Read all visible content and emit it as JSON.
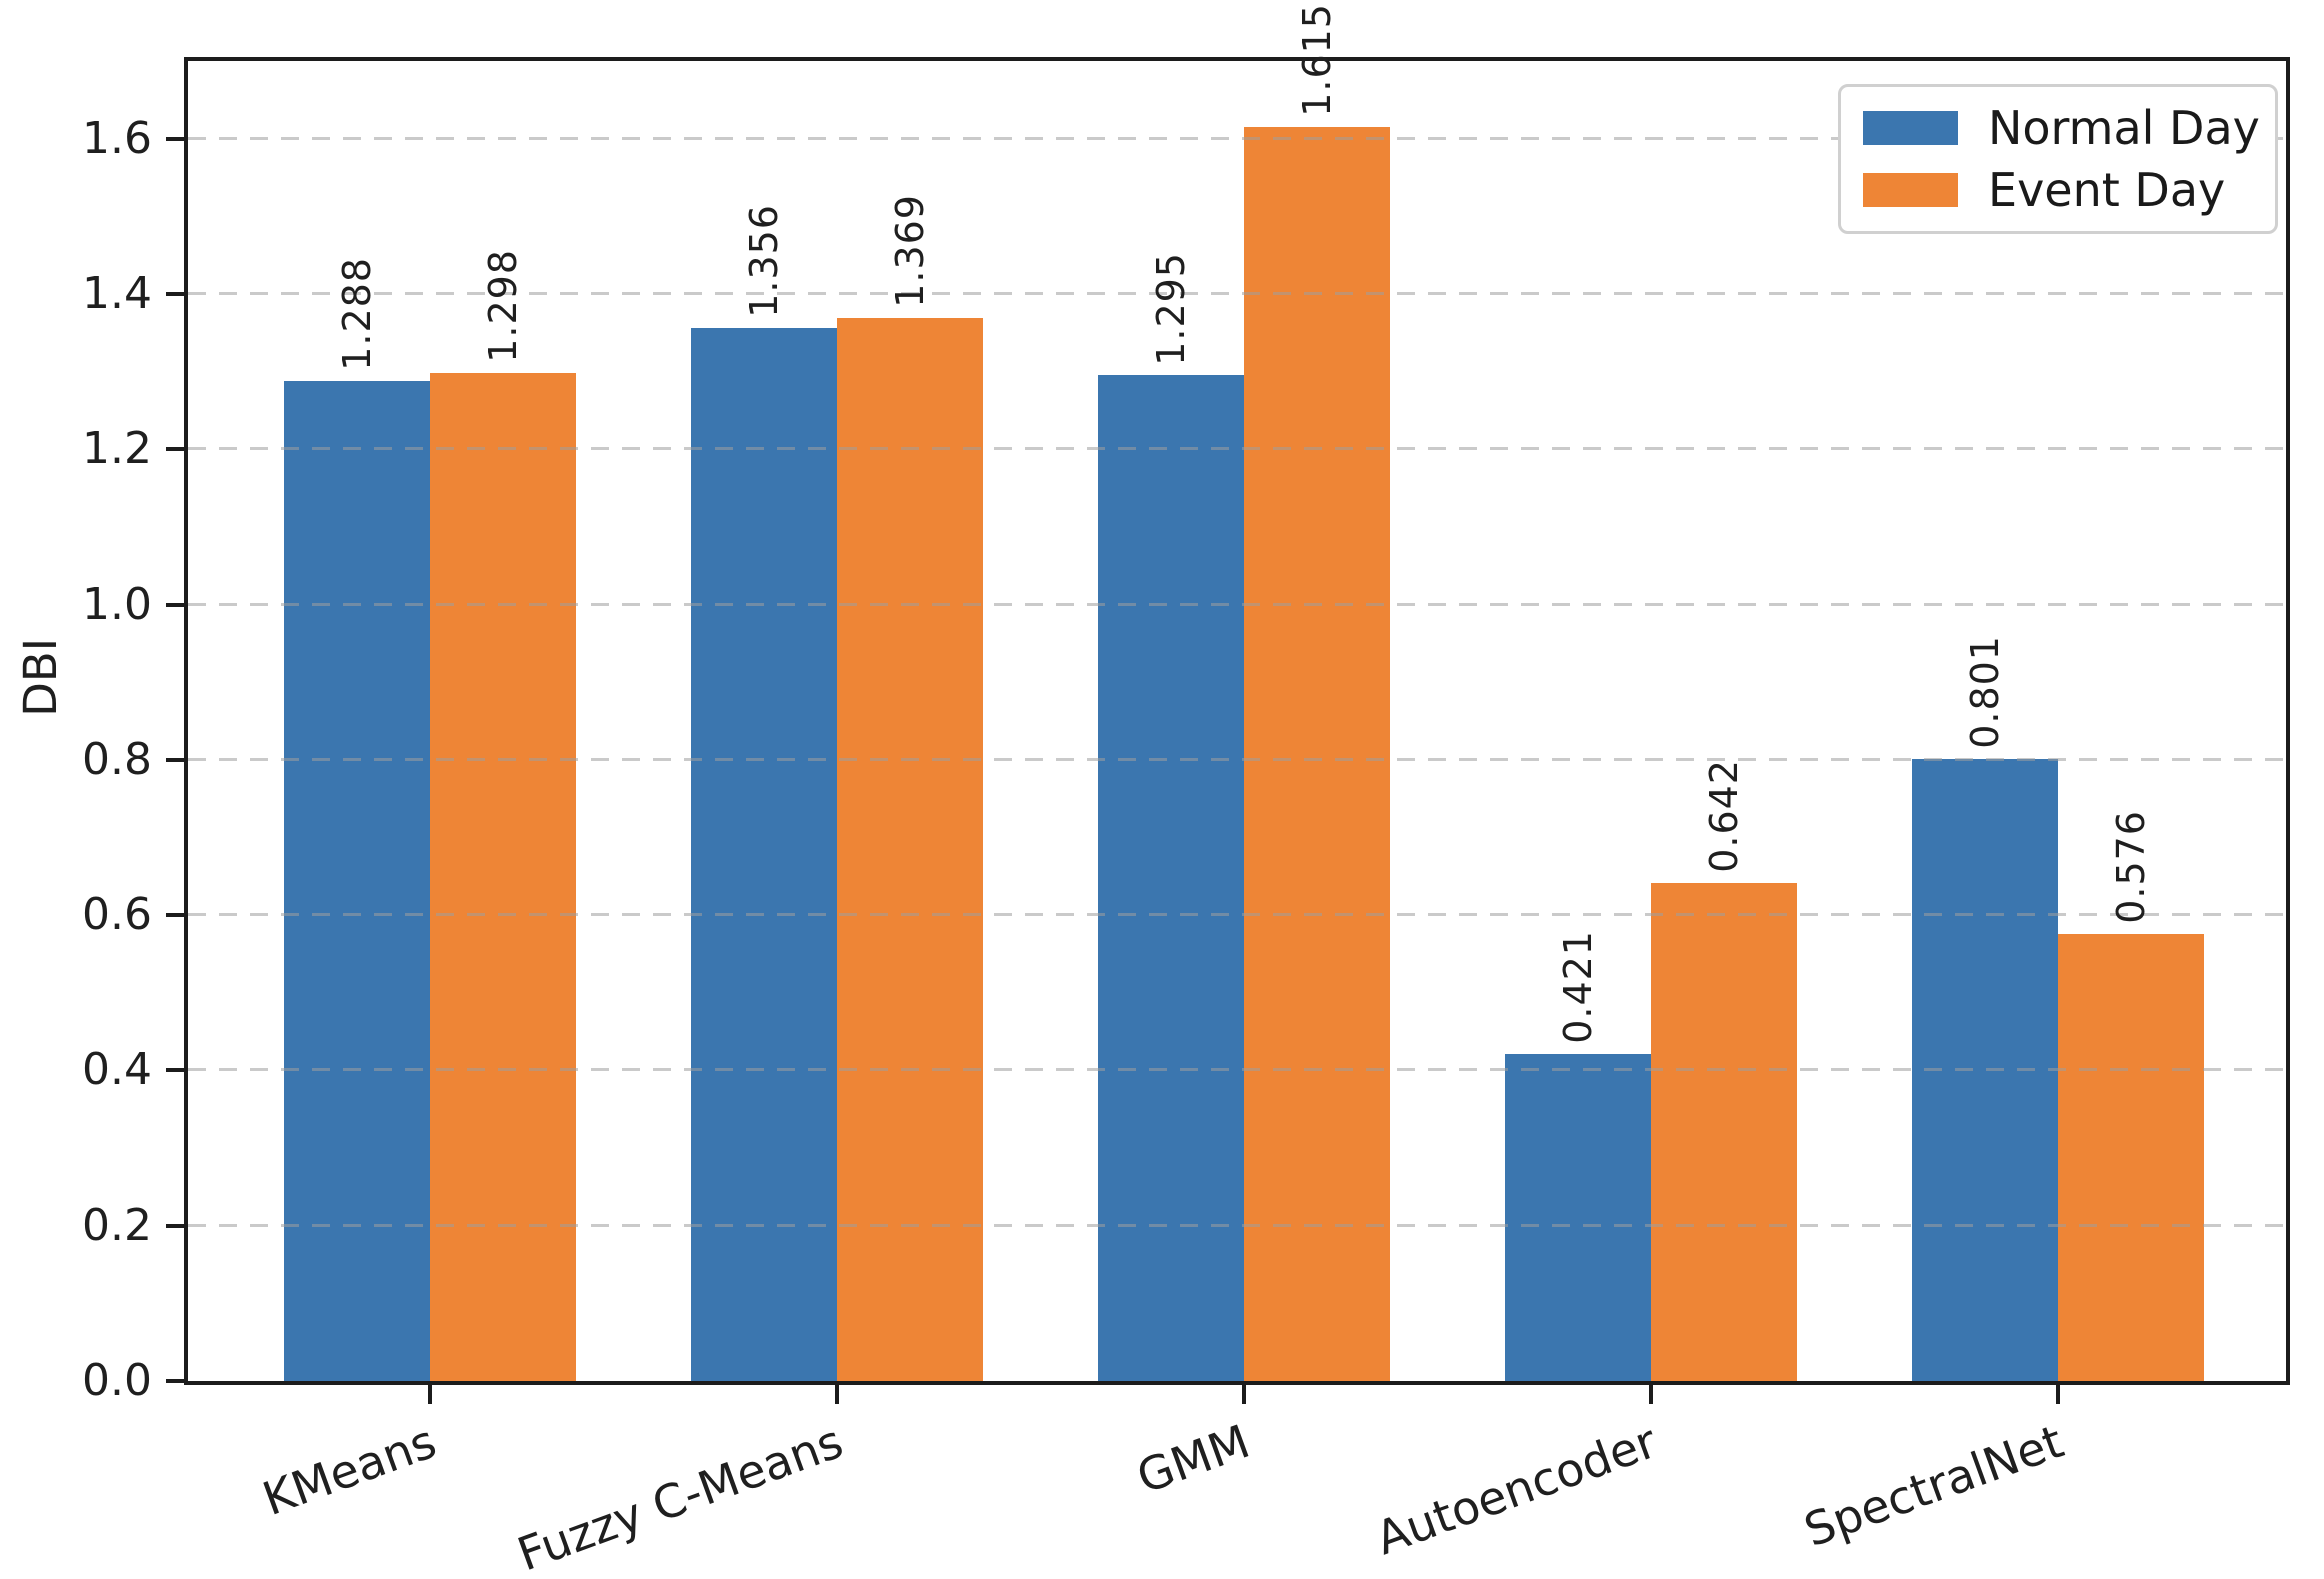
{
  "chart_data": {
    "type": "bar",
    "title": "",
    "xlabel": "",
    "ylabel": "DBI",
    "categories": [
      "KMeans",
      "Fuzzy C-Means",
      "GMM",
      "Autoencoder",
      "SpectralNet"
    ],
    "series": [
      {
        "name": "Normal Day",
        "color": "#3b76af",
        "values": [
          1.288,
          1.356,
          1.295,
          0.421,
          0.801
        ]
      },
      {
        "name": "Event Day",
        "color": "#ee8536",
        "values": [
          1.298,
          1.369,
          1.615,
          0.642,
          0.576
        ]
      }
    ],
    "bar_value_labels": {
      "Normal Day": [
        "1.288",
        "1.356",
        "1.295",
        "0.421",
        "0.801"
      ],
      "Event Day": [
        "1.298",
        "1.369",
        "1.615",
        "0.642",
        "0.576"
      ]
    },
    "ylim": [
      0,
      1.7
    ],
    "yticks": [
      "0.0",
      "0.2",
      "0.4",
      "0.6",
      "0.8",
      "1.0",
      "1.2",
      "1.4",
      "1.6"
    ],
    "grid": "horizontal-dashed",
    "legend_position": "upper-right",
    "legend_entries": [
      "Normal Day",
      "Event Day"
    ],
    "xtick_rotation_deg": 20,
    "bar_label_rotation_deg": 90
  },
  "style_colors": {
    "normal_day": "#3b76af",
    "event_day": "#ee8536",
    "axis": "#1c1c1c",
    "grid": "#d6d6d6",
    "text": "#1f1f1f",
    "legend_border": "#d0d0d0"
  }
}
